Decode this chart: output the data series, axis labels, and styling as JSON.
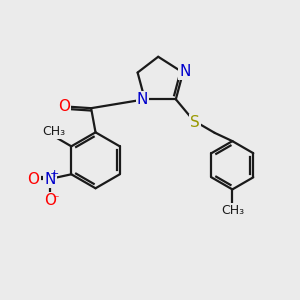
{
  "background_color": "#ebebeb",
  "bond_color": "#1a1a1a",
  "bond_width": 1.6,
  "atom_colors": {
    "O": "#ff0000",
    "N": "#0000cc",
    "S": "#999900",
    "C": "#1a1a1a"
  },
  "font_size_atom": 11,
  "font_size_small": 9,
  "figsize": [
    3.0,
    3.0
  ],
  "dpi": 100
}
